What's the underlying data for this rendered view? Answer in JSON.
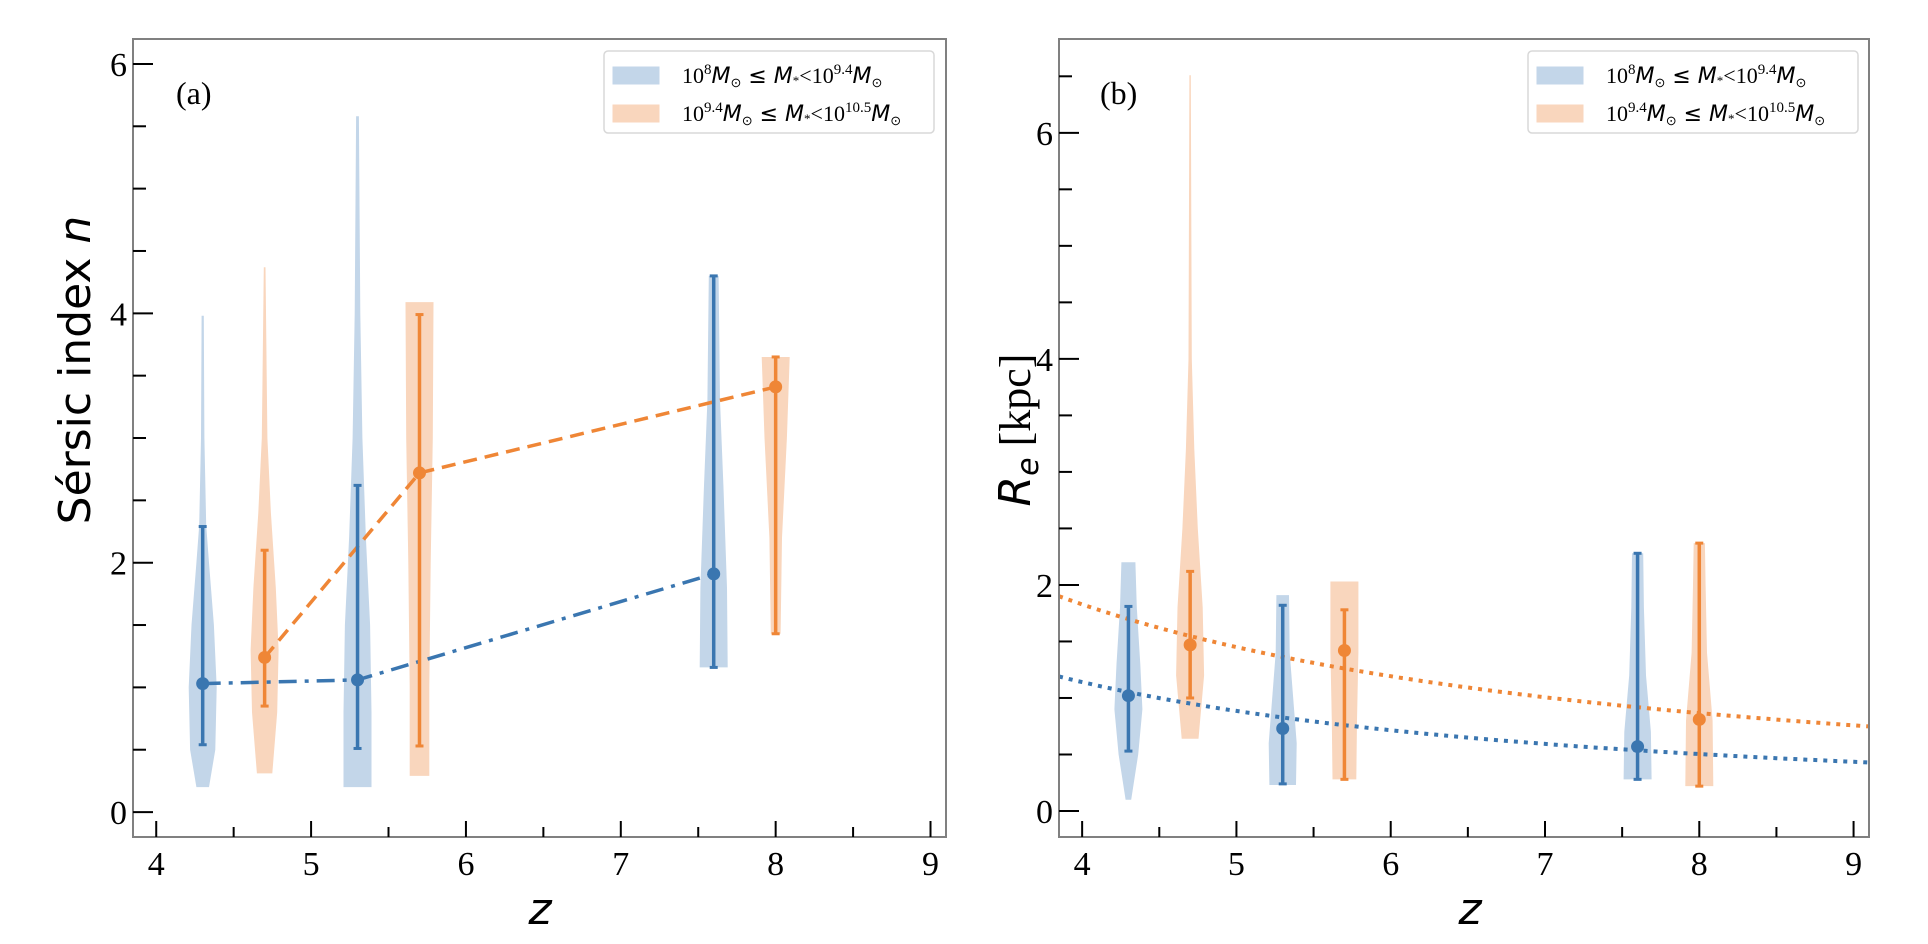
{
  "colors": {
    "low_mass": "#3a76b0",
    "low_mass_fill": "#c3d6e9",
    "high_mass": "#ef8636",
    "high_mass_fill": "#f9d6bd",
    "axis": "#000000",
    "frame": "#808080"
  },
  "legend": {
    "low_mass": {
      "prefix": "10",
      "prefix_sup": "8",
      "mid": "M",
      "mid_sub": "⊙",
      "rel": " ≤ M",
      "rel_sub": "*",
      "lt": "<10",
      "lt_sup": "9.4",
      "suffix": "M",
      "suffix_sub": "⊙"
    },
    "high_mass": {
      "prefix": "10",
      "prefix_sup": "9.4",
      "mid": "M",
      "mid_sub": "⊙",
      "rel": " ≤ M",
      "rel_sub": "*",
      "lt": "<10",
      "lt_sup": "10.5",
      "suffix": "M",
      "suffix_sub": "⊙"
    },
    "placement": "top-right"
  },
  "chart_data": [
    {
      "type": "violin",
      "panel_label": "(a)",
      "title": "",
      "xlabel": "z",
      "ylabel_main": "Sérsic index ",
      "ylabel_var": "n",
      "xlim": [
        3.85,
        9.1
      ],
      "ylim": [
        -0.2,
        6.2
      ],
      "xticks": [
        4,
        5,
        6,
        7,
        8,
        9
      ],
      "xtick_labels": [
        "4",
        "5",
        "6",
        "7",
        "8",
        "9"
      ],
      "xminor": [
        4.5,
        5.5,
        6.5,
        7.5,
        8.5
      ],
      "yticks": [
        0,
        2,
        4,
        6
      ],
      "ytick_labels": [
        "0",
        "2",
        "4",
        "6"
      ],
      "yminor": [
        0.5,
        1,
        1.5,
        2.5,
        3,
        3.5,
        4.5,
        5,
        5.5
      ],
      "series": [
        {
          "name": "10^8 Msun <= M* < 10^9.4 Msun",
          "color_key": "low_mass",
          "linestyle": "dashdot",
          "points": [
            {
              "z": 4.3,
              "median": 1.03,
              "err_low": 0.54,
              "err_high": 2.29,
              "violin_min": 0.2,
              "violin_max": 3.98,
              "profile": [
                [
                  0.2,
                  0.45
                ],
                [
                  0.5,
                  0.9
                ],
                [
                  1.0,
                  1.0
                ],
                [
                  1.5,
                  0.8
                ],
                [
                  2.0,
                  0.45
                ],
                [
                  2.3,
                  0.25
                ],
                [
                  3.0,
                  0.12
                ],
                [
                  3.98,
                  0.08
                ]
              ]
            },
            {
              "z": 5.3,
              "median": 1.06,
              "err_low": 0.51,
              "err_high": 2.62,
              "violin_min": 0.2,
              "violin_max": 5.58,
              "profile": [
                [
                  0.2,
                  1.0
                ],
                [
                  0.8,
                  1.0
                ],
                [
                  1.5,
                  0.9
                ],
                [
                  2.2,
                  0.6
                ],
                [
                  3.0,
                  0.35
                ],
                [
                  4.0,
                  0.2
                ],
                [
                  5.58,
                  0.1
                ]
              ]
            },
            {
              "z": 7.6,
              "median": 1.91,
              "err_low": 1.16,
              "err_high": 4.3,
              "violin_min": 1.16,
              "violin_max": 4.3,
              "profile": [
                [
                  1.16,
                  1.0
                ],
                [
                  1.8,
                  0.95
                ],
                [
                  2.6,
                  0.7
                ],
                [
                  3.3,
                  0.45
                ],
                [
                  4.3,
                  0.35
                ]
              ]
            }
          ]
        },
        {
          "name": "10^9.4 Msun <= M* < 10^10.5 Msun",
          "color_key": "high_mass",
          "linestyle": "dashed",
          "points": [
            {
              "z": 4.7,
              "median": 1.24,
              "err_low": 0.85,
              "err_high": 2.1,
              "violin_min": 0.31,
              "violin_max": 4.37,
              "profile": [
                [
                  0.31,
                  0.55
                ],
                [
                  0.8,
                  0.9
                ],
                [
                  1.3,
                  1.0
                ],
                [
                  1.8,
                  0.8
                ],
                [
                  2.4,
                  0.45
                ],
                [
                  3.0,
                  0.2
                ],
                [
                  4.37,
                  0.06
                ]
              ]
            },
            {
              "z": 5.7,
              "median": 2.72,
              "err_low": 0.53,
              "err_high": 3.99,
              "violin_min": 0.29,
              "violin_max": 4.09,
              "profile": [
                [
                  0.29,
                  0.7
                ],
                [
                  1.0,
                  0.7
                ],
                [
                  2.0,
                  0.8
                ],
                [
                  3.0,
                  0.95
                ],
                [
                  4.09,
                  1.0
                ]
              ]
            },
            {
              "z": 8.0,
              "median": 3.41,
              "err_low": 1.43,
              "err_high": 3.65,
              "violin_min": 1.43,
              "violin_max": 3.65,
              "profile": [
                [
                  1.43,
                  0.35
                ],
                [
                  2.2,
                  0.45
                ],
                [
                  3.0,
                  0.8
                ],
                [
                  3.65,
                  1.0
                ]
              ]
            }
          ]
        }
      ]
    },
    {
      "type": "violin",
      "panel_label": "(b)",
      "title": "",
      "xlabel": "z",
      "ylabel_main": "R",
      "ylabel_sub": "e",
      "ylabel_unit": " [kpc]",
      "xlim": [
        3.85,
        9.1
      ],
      "ylim": [
        -0.23,
        6.83
      ],
      "xticks": [
        4,
        5,
        6,
        7,
        8,
        9
      ],
      "xtick_labels": [
        "4",
        "5",
        "6",
        "7",
        "8",
        "9"
      ],
      "xminor": [
        4.5,
        5.5,
        6.5,
        7.5,
        8.5
      ],
      "yticks": [
        0,
        2,
        4,
        6
      ],
      "ytick_labels": [
        "0",
        "2",
        "4",
        "6"
      ],
      "yminor": [
        0.5,
        1,
        1.5,
        2.5,
        3,
        3.5,
        4.5,
        5,
        5.5,
        6.5
      ],
      "series": [
        {
          "name": "10^8 Msun <= M* < 10^9.4 Msun",
          "color_key": "low_mass",
          "fit_curve": {
            "form": "A*((1+z)/4.85)^-m",
            "A": 1.19,
            "m": 1.39,
            "linestyle": "dotted"
          },
          "points": [
            {
              "z": 4.3,
              "median": 1.02,
              "err_low": 0.53,
              "err_high": 1.81,
              "violin_min": 0.1,
              "violin_max": 2.2,
              "profile": [
                [
                  0.1,
                  0.2
                ],
                [
                  0.5,
                  0.7
                ],
                [
                  0.9,
                  1.0
                ],
                [
                  1.3,
                  0.85
                ],
                [
                  1.8,
                  0.6
                ],
                [
                  2.2,
                  0.5
                ]
              ]
            },
            {
              "z": 5.3,
              "median": 0.73,
              "err_low": 0.24,
              "err_high": 1.82,
              "violin_min": 0.23,
              "violin_max": 1.91,
              "profile": [
                [
                  0.23,
                  0.95
                ],
                [
                  0.6,
                  1.0
                ],
                [
                  1.0,
                  0.75
                ],
                [
                  1.4,
                  0.5
                ],
                [
                  1.91,
                  0.45
                ]
              ]
            },
            {
              "z": 7.6,
              "median": 0.57,
              "err_low": 0.28,
              "err_high": 2.28,
              "violin_min": 0.28,
              "violin_max": 2.28,
              "profile": [
                [
                  0.28,
                  1.0
                ],
                [
                  0.7,
                  0.95
                ],
                [
                  1.2,
                  0.6
                ],
                [
                  1.8,
                  0.45
                ],
                [
                  2.28,
                  0.4
                ]
              ]
            }
          ]
        },
        {
          "name": "10^9.4 Msun <= M* < 10^10.5 Msun",
          "color_key": "high_mass",
          "fit_curve": {
            "form": "A*((1+z)/4.85)^-m",
            "A": 1.9,
            "m": 1.27,
            "linestyle": "dotted"
          },
          "points": [
            {
              "z": 4.7,
              "median": 1.47,
              "err_low": 1.0,
              "err_high": 2.12,
              "violin_min": 0.64,
              "violin_max": 6.51,
              "profile": [
                [
                  0.64,
                  0.6
                ],
                [
                  1.2,
                  1.0
                ],
                [
                  1.8,
                  0.9
                ],
                [
                  2.5,
                  0.55
                ],
                [
                  3.2,
                  0.3
                ],
                [
                  4.0,
                  0.12
                ],
                [
                  6.51,
                  0.05
                ]
              ]
            },
            {
              "z": 5.7,
              "median": 1.42,
              "err_low": 0.28,
              "err_high": 1.78,
              "violin_min": 0.28,
              "violin_max": 2.03,
              "profile": [
                [
                  0.28,
                  0.85
                ],
                [
                  0.8,
                  0.9
                ],
                [
                  1.4,
                  1.0
                ],
                [
                  2.03,
                  1.0
                ]
              ]
            },
            {
              "z": 8.0,
              "median": 0.81,
              "err_low": 0.22,
              "err_high": 2.37,
              "violin_min": 0.22,
              "violin_max": 2.37,
              "profile": [
                [
                  0.22,
                  1.0
                ],
                [
                  0.8,
                  0.95
                ],
                [
                  1.4,
                  0.55
                ],
                [
                  2.0,
                  0.45
                ],
                [
                  2.37,
                  0.4
                ]
              ]
            }
          ]
        }
      ]
    }
  ]
}
